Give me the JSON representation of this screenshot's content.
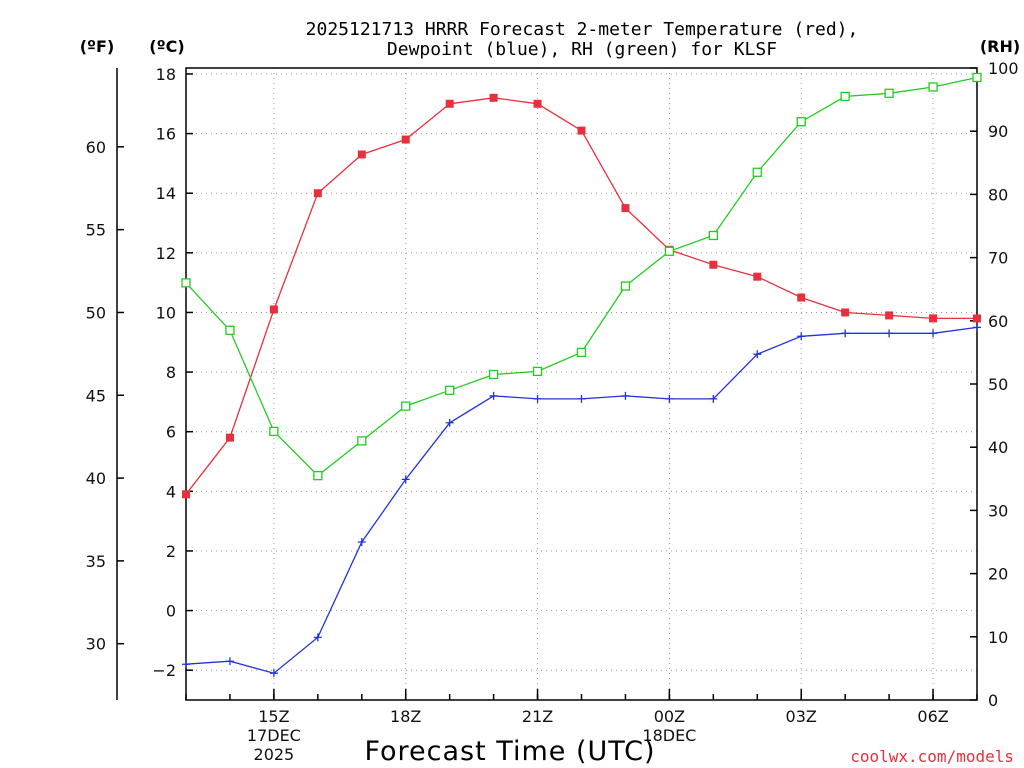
{
  "chart_data": {
    "type": "line",
    "title": "2025121713 HRRR Forecast 2-meter Temperature (red),",
    "subtitle": "Dewpoint (blue), RH (green) for KLSF",
    "xlabel": "Forecast Time (UTC)",
    "credit": "coolwx.com/models",
    "units": {
      "fahrenheit": "(ºF)",
      "celsius": "(ºC)",
      "rh": "(RH)"
    },
    "x_hours": [
      13,
      14,
      15,
      16,
      17,
      18,
      19,
      20,
      21,
      22,
      23,
      24,
      25,
      26,
      27,
      28,
      29,
      30,
      31
    ],
    "xlim": [
      13,
      31
    ],
    "x_ticks": [
      {
        "hour": 15,
        "lines": [
          "15Z",
          "17DEC",
          "2025"
        ]
      },
      {
        "hour": 18,
        "lines": [
          "18Z"
        ]
      },
      {
        "hour": 21,
        "lines": [
          "21Z"
        ]
      },
      {
        "hour": 24,
        "lines": [
          "00Z",
          "18DEC"
        ]
      },
      {
        "hour": 27,
        "lines": [
          "03Z"
        ]
      },
      {
        "hour": 30,
        "lines": [
          "06Z"
        ]
      }
    ],
    "celsius_axis": {
      "ylim": [
        -3,
        18.2
      ],
      "ticks": [
        -2,
        0,
        2,
        4,
        6,
        8,
        10,
        12,
        14,
        16,
        18
      ]
    },
    "fahrenheit_axis": {
      "ticks": [
        30,
        35,
        40,
        45,
        50,
        55,
        60
      ]
    },
    "rh_axis": {
      "ylim": [
        0,
        100
      ],
      "ticks": [
        0,
        10,
        20,
        30,
        40,
        50,
        60,
        70,
        80,
        90,
        100
      ]
    },
    "series": [
      {
        "key": "temperature",
        "axis": "celsius",
        "color": "#e8303c",
        "marker": "filled-square",
        "values": [
          3.9,
          5.8,
          10.1,
          14.0,
          15.3,
          15.8,
          17.0,
          17.2,
          17.0,
          16.1,
          13.5,
          12.1,
          11.6,
          11.2,
          10.5,
          10.0,
          9.9,
          9.8,
          9.8
        ]
      },
      {
        "key": "dewpoint",
        "axis": "celsius",
        "color": "#2233dd",
        "marker": "plus",
        "values": [
          -1.8,
          -1.7,
          -2.1,
          -0.9,
          2.3,
          4.4,
          6.3,
          7.2,
          7.1,
          7.1,
          7.2,
          7.1,
          7.1,
          8.6,
          9.2,
          9.3,
          9.3,
          9.3,
          9.5
        ]
      },
      {
        "key": "rh",
        "axis": "rh",
        "color": "#22cc22",
        "marker": "open-square",
        "values": [
          66,
          58.5,
          42.5,
          35.5,
          41,
          46.5,
          49,
          51.5,
          52,
          55,
          65.5,
          71,
          73.5,
          83.5,
          91.5,
          95.5,
          96,
          97,
          98.5
        ]
      }
    ]
  }
}
